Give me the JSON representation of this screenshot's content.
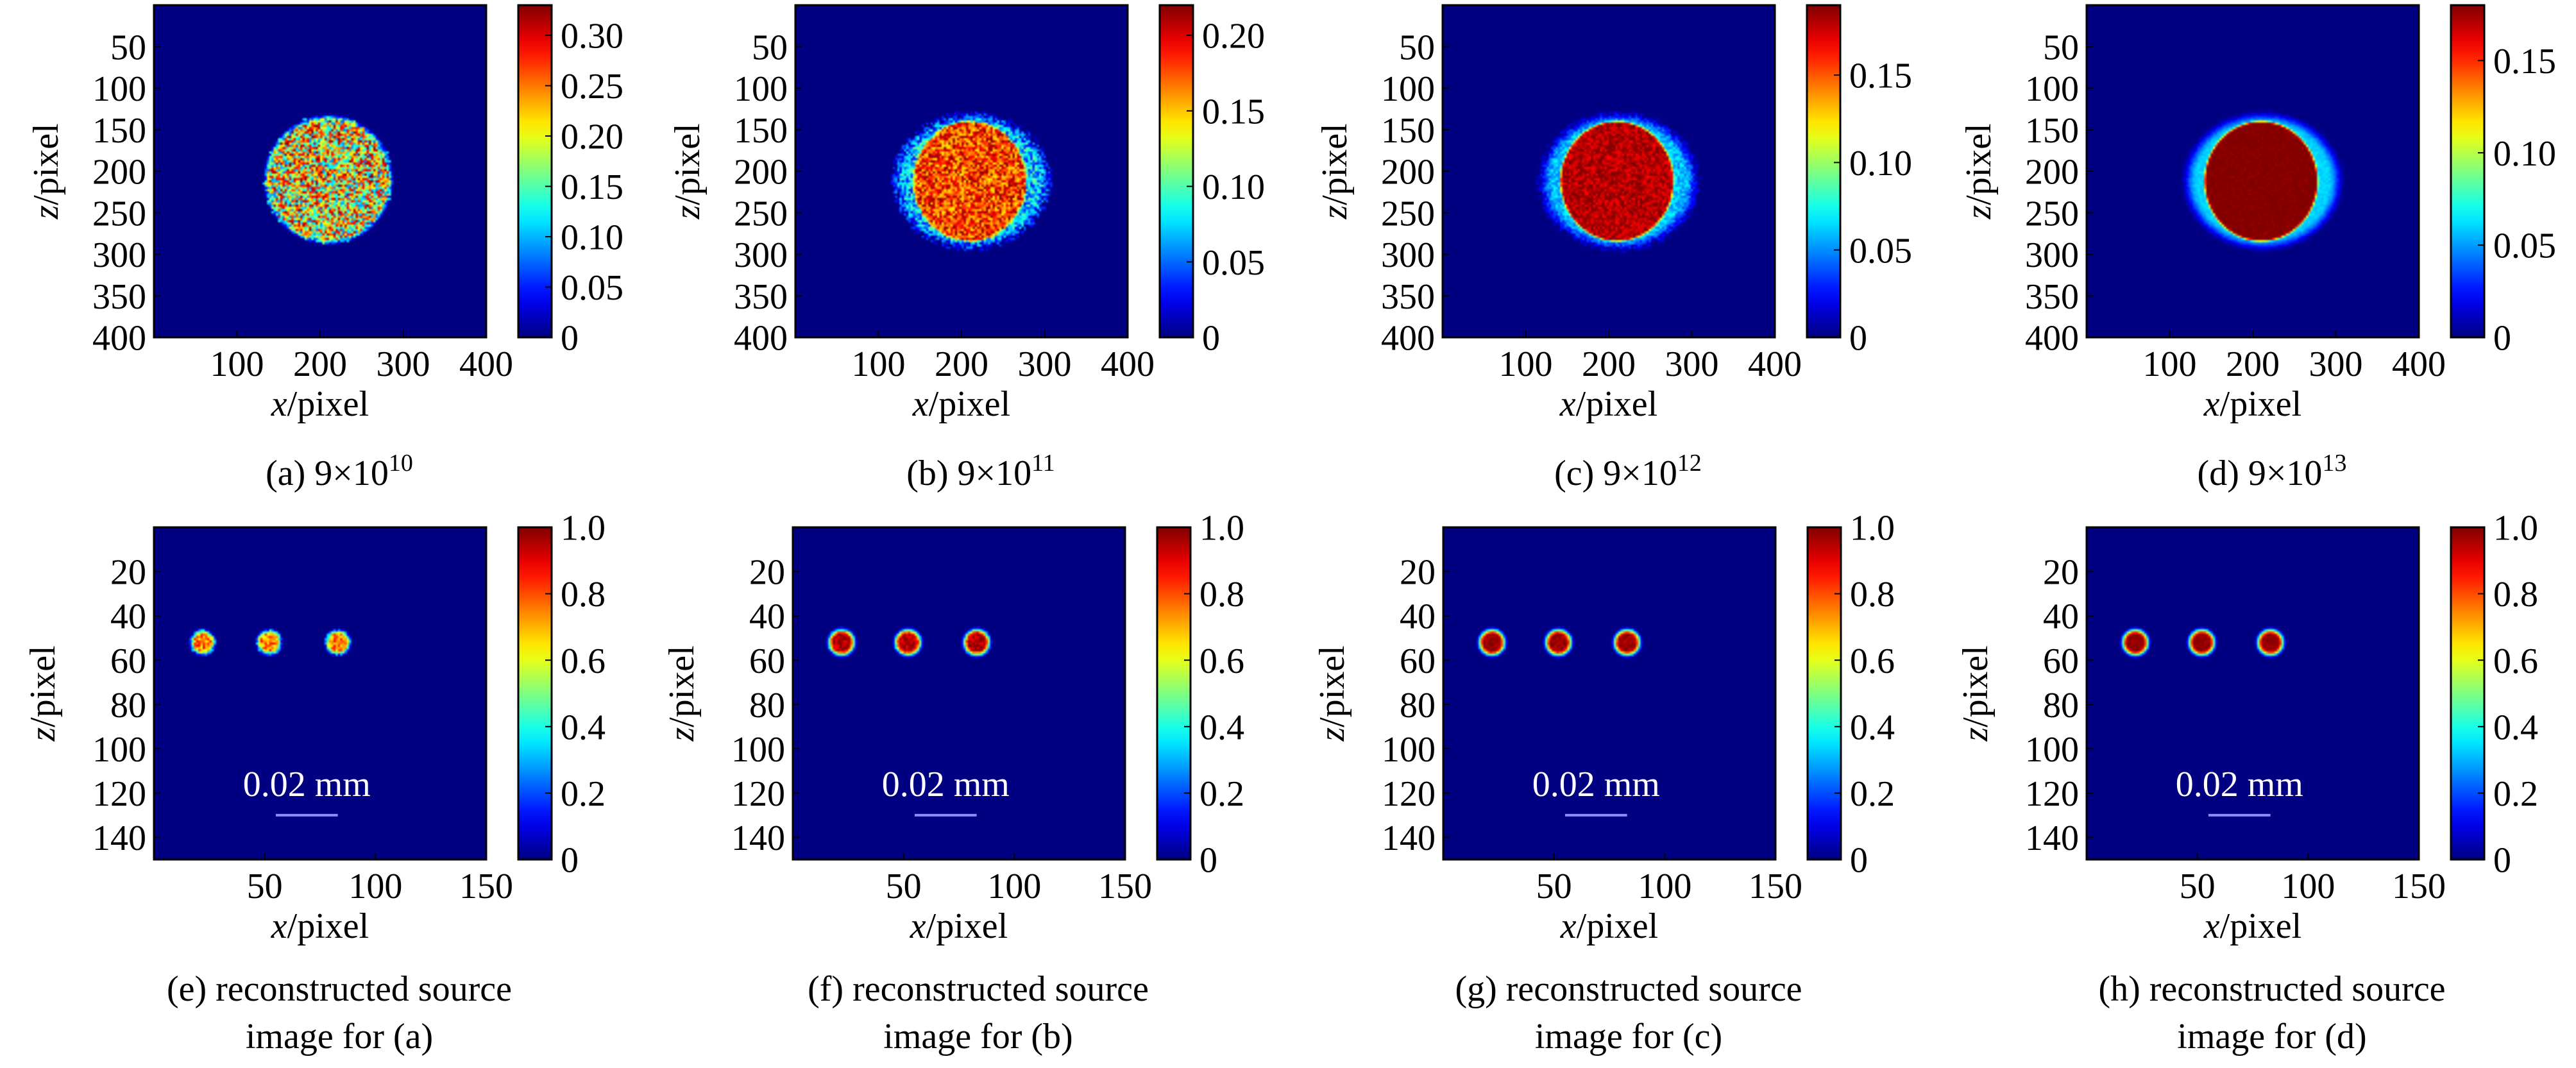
{
  "chart_data": [
    {
      "type": "heatmap",
      "caption_id": "(a)",
      "caption_text": "9×10",
      "caption_exp": "10",
      "xlabel_var": "x",
      "xlabel_unit": "/pixel",
      "ylabel_var": "z",
      "ylabel_unit": "/pixel",
      "xlim": [
        0,
        400
      ],
      "ylim": [
        400,
        0
      ],
      "xticks": [
        100,
        200,
        300,
        400
      ],
      "yticks": [
        50,
        100,
        150,
        200,
        250,
        300,
        350,
        400
      ],
      "colorbar": {
        "colormap": "jet",
        "min": 0,
        "max": 0.33,
        "ticks": [
          0,
          0.05,
          0.1,
          0.15,
          0.2,
          0.25,
          0.3
        ],
        "tick_labels": [
          "0",
          "0.05",
          "0.10",
          "0.15",
          "0.20",
          "0.25",
          "0.30"
        ]
      },
      "pattern": {
        "kind": "disc",
        "center": [
          210,
          210
        ],
        "radius_x": 75,
        "radius_y": 75,
        "core_value": 0.2,
        "rim_value": 0.2,
        "noise": 0.12,
        "edge_softness": 0.06
      }
    },
    {
      "type": "heatmap",
      "caption_id": "(b)",
      "caption_text": "9×10",
      "caption_exp": "11",
      "xlabel_var": "x",
      "xlabel_unit": "/pixel",
      "ylabel_var": "z",
      "ylabel_unit": "/pixel",
      "xlim": [
        0,
        400
      ],
      "ylim": [
        400,
        0
      ],
      "xticks": [
        100,
        200,
        300,
        400
      ],
      "yticks": [
        50,
        100,
        150,
        200,
        250,
        300,
        350,
        400
      ],
      "colorbar": {
        "colormap": "jet",
        "min": 0,
        "max": 0.22,
        "ticks": [
          0,
          0.05,
          0.1,
          0.15,
          0.2
        ],
        "tick_labels": [
          "0",
          "0.05",
          "0.10",
          "0.15",
          "0.20"
        ]
      },
      "pattern": {
        "kind": "disc-crescent",
        "center": [
          212,
          212
        ],
        "radius_x": 90,
        "radius_y": 78,
        "core_center": [
          210,
          212
        ],
        "core_radius_x": 68,
        "core_radius_y": 72,
        "core_value": 0.18,
        "rim_value": 0.07,
        "noise": 0.04,
        "edge_softness": 0.1
      }
    },
    {
      "type": "heatmap",
      "caption_id": "(c)",
      "caption_text": "9×10",
      "caption_exp": "12",
      "xlabel_var": "x",
      "xlabel_unit": "/pixel",
      "ylabel_var": "z",
      "ylabel_unit": "/pixel",
      "xlim": [
        0,
        400
      ],
      "ylim": [
        400,
        0
      ],
      "xticks": [
        100,
        200,
        300,
        400
      ],
      "yticks": [
        50,
        100,
        150,
        200,
        250,
        300,
        350,
        400
      ],
      "colorbar": {
        "colormap": "jet",
        "min": 0,
        "max": 0.19,
        "ticks": [
          0,
          0.05,
          0.1,
          0.15
        ],
        "tick_labels": [
          "0",
          "0.05",
          "0.10",
          "0.15"
        ]
      },
      "pattern": {
        "kind": "disc-crescent",
        "center": [
          212,
          212
        ],
        "radius_x": 90,
        "radius_y": 78,
        "core_center": [
          210,
          212
        ],
        "core_radius_x": 68,
        "core_radius_y": 72,
        "core_value": 0.18,
        "rim_value": 0.06,
        "noise": 0.015,
        "edge_softness": 0.12
      }
    },
    {
      "type": "heatmap",
      "caption_id": "(d)",
      "caption_text": "9×10",
      "caption_exp": "13",
      "xlabel_var": "x",
      "xlabel_unit": "/pixel",
      "ylabel_var": "z",
      "ylabel_unit": "/pixel",
      "xlim": [
        0,
        400
      ],
      "ylim": [
        400,
        0
      ],
      "xticks": [
        100,
        200,
        300,
        400
      ],
      "yticks": [
        50,
        100,
        150,
        200,
        250,
        300,
        350,
        400
      ],
      "colorbar": {
        "colormap": "jet",
        "min": 0,
        "max": 0.18,
        "ticks": [
          0,
          0.05,
          0.1,
          0.15
        ],
        "tick_labels": [
          "0",
          "0.05",
          "0.10",
          "0.15"
        ]
      },
      "pattern": {
        "kind": "disc-crescent",
        "center": [
          212,
          212
        ],
        "radius_x": 90,
        "radius_y": 78,
        "core_center": [
          210,
          212
        ],
        "core_radius_x": 68,
        "core_radius_y": 72,
        "core_value": 0.18,
        "rim_value": 0.06,
        "noise": 0.004,
        "edge_softness": 0.12
      }
    },
    {
      "type": "heatmap",
      "caption_id": "(e)",
      "caption_line1": "reconstructed source",
      "caption_line2": "image for (a)",
      "xlabel_var": "x",
      "xlabel_unit": "/pixel",
      "ylabel_var": "z",
      "ylabel_unit": "/pixel",
      "xlim": [
        0,
        150
      ],
      "ylim": [
        150,
        0
      ],
      "xticks": [
        50,
        100,
        150
      ],
      "yticks": [
        20,
        40,
        60,
        80,
        100,
        120,
        140
      ],
      "colorbar": {
        "colormap": "jet",
        "min": 0,
        "max": 1.0,
        "ticks": [
          0,
          0.2,
          0.4,
          0.6,
          0.8,
          1.0
        ],
        "tick_labels": [
          "0",
          "0.2",
          "0.4",
          "0.6",
          "0.8",
          "1.0"
        ]
      },
      "scale_bar": {
        "label": "0.02 mm",
        "x_start": 55,
        "x_end": 83,
        "z": 130
      },
      "sources": [
        {
          "center": [
            22,
            52
          ],
          "radius": 6
        },
        {
          "center": [
            52,
            52
          ],
          "radius": 6
        },
        {
          "center": [
            83,
            52
          ],
          "radius": 6
        }
      ],
      "source_peak": 0.75,
      "source_noise": 0.3
    },
    {
      "type": "heatmap",
      "caption_id": "(f)",
      "caption_line1": "reconstructed source",
      "caption_line2": "image for (b)",
      "xlabel_var": "x",
      "xlabel_unit": "/pixel",
      "ylabel_var": "z",
      "ylabel_unit": "/pixel",
      "xlim": [
        0,
        150
      ],
      "ylim": [
        150,
        0
      ],
      "xticks": [
        50,
        100,
        150
      ],
      "yticks": [
        20,
        40,
        60,
        80,
        100,
        120,
        140
      ],
      "colorbar": {
        "colormap": "jet",
        "min": 0,
        "max": 1.0,
        "ticks": [
          0,
          0.2,
          0.4,
          0.6,
          0.8,
          1.0
        ],
        "tick_labels": [
          "0",
          "0.2",
          "0.4",
          "0.6",
          "0.8",
          "1.0"
        ]
      },
      "scale_bar": {
        "label": "0.02 mm",
        "x_start": 55,
        "x_end": 83,
        "z": 130
      },
      "sources": [
        {
          "center": [
            22,
            52
          ],
          "radius": 6.5
        },
        {
          "center": [
            52,
            52
          ],
          "radius": 6.5
        },
        {
          "center": [
            83,
            52
          ],
          "radius": 6.5
        }
      ],
      "source_peak": 0.95,
      "source_noise": 0.15
    },
    {
      "type": "heatmap",
      "caption_id": "(g)",
      "caption_line1": "reconstructed source",
      "caption_line2": "image for (c)",
      "xlabel_var": "x",
      "xlabel_unit": "/pixel",
      "ylabel_var": "z",
      "ylabel_unit": "/pixel",
      "xlim": [
        0,
        150
      ],
      "ylim": [
        150,
        0
      ],
      "xticks": [
        50,
        100,
        150
      ],
      "yticks": [
        20,
        40,
        60,
        80,
        100,
        120,
        140
      ],
      "colorbar": {
        "colormap": "jet",
        "min": 0,
        "max": 1.0,
        "ticks": [
          0,
          0.2,
          0.4,
          0.6,
          0.8,
          1.0
        ],
        "tick_labels": [
          "0",
          "0.2",
          "0.4",
          "0.6",
          "0.8",
          "1.0"
        ]
      },
      "scale_bar": {
        "label": "0.02 mm",
        "x_start": 55,
        "x_end": 83,
        "z": 130
      },
      "sources": [
        {
          "center": [
            22,
            52
          ],
          "radius": 6.5
        },
        {
          "center": [
            52,
            52
          ],
          "radius": 6.5
        },
        {
          "center": [
            83,
            52
          ],
          "radius": 6.5
        }
      ],
      "source_peak": 0.97,
      "source_noise": 0.08
    },
    {
      "type": "heatmap",
      "caption_id": "(h)",
      "caption_line1": "reconstructed source",
      "caption_line2": "image for (d)",
      "xlabel_var": "x",
      "xlabel_unit": "/pixel",
      "ylabel_var": "z",
      "ylabel_unit": "/pixel",
      "xlim": [
        0,
        150
      ],
      "ylim": [
        150,
        0
      ],
      "xticks": [
        50,
        100,
        150
      ],
      "yticks": [
        20,
        40,
        60,
        80,
        100,
        120,
        140
      ],
      "colorbar": {
        "colormap": "jet",
        "min": 0,
        "max": 1.0,
        "ticks": [
          0,
          0.2,
          0.4,
          0.6,
          0.8,
          1.0
        ],
        "tick_labels": [
          "0",
          "0.2",
          "0.4",
          "0.6",
          "0.8",
          "1.0"
        ]
      },
      "scale_bar": {
        "label": "0.02 mm",
        "x_start": 55,
        "x_end": 83,
        "z": 130
      },
      "sources": [
        {
          "center": [
            22,
            52
          ],
          "radius": 6.5
        },
        {
          "center": [
            52,
            52
          ],
          "radius": 6.5
        },
        {
          "center": [
            83,
            52
          ],
          "radius": 6.5
        }
      ],
      "source_peak": 0.98,
      "source_noise": 0.05
    }
  ]
}
